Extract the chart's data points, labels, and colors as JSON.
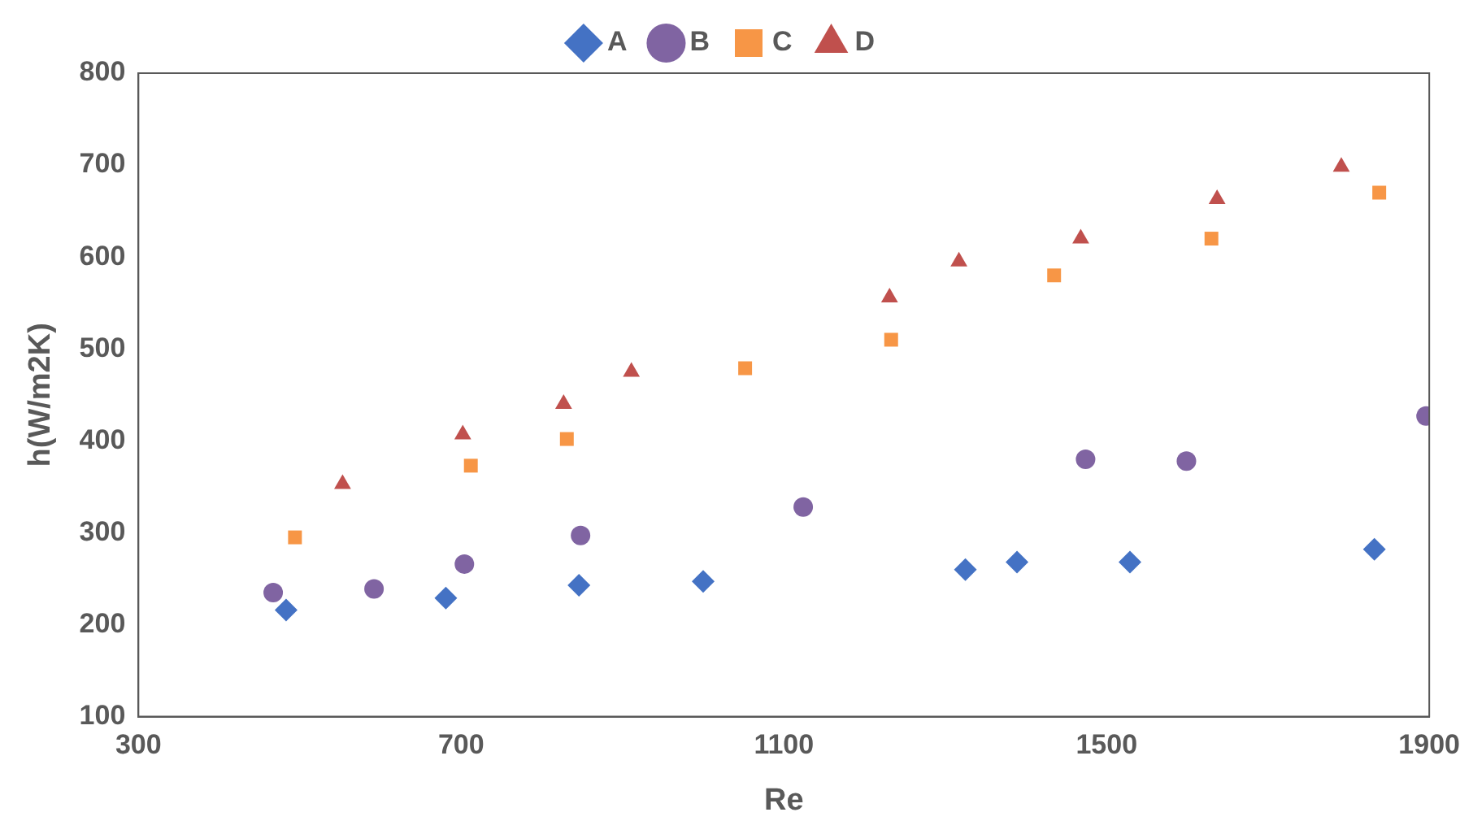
{
  "chart_data": {
    "type": "scatter",
    "xlabel": "Re",
    "ylabel": "h(W/m2K)",
    "xlim": [
      300,
      1900
    ],
    "xticks": [
      300,
      700,
      1100,
      1500,
      1900
    ],
    "ylim": [
      100,
      800
    ],
    "yticks": [
      100,
      200,
      300,
      400,
      500,
      600,
      700,
      800
    ],
    "grid": false,
    "legend": "top",
    "series": [
      {
        "name": "A",
        "color": "#4472c4",
        "marker": "diamond",
        "x": [
          483,
          681,
          846,
          1000,
          1325,
          1389,
          1529,
          1832
        ],
        "values": [
          216,
          229,
          243,
          247,
          260,
          268,
          268,
          282
        ]
      },
      {
        "name": "B",
        "color": "#8064a2",
        "marker": "circle",
        "x": [
          467,
          592,
          704,
          848,
          1124,
          1474,
          1599,
          1896
        ],
        "values": [
          235,
          239,
          266,
          297,
          328,
          380,
          378,
          427
        ]
      },
      {
        "name": "C",
        "color": "#f79646",
        "marker": "square",
        "x": [
          494,
          712,
          831,
          1052,
          1233,
          1435,
          1630,
          1838
        ],
        "values": [
          295,
          373,
          402,
          479,
          510,
          580,
          620,
          670
        ]
      },
      {
        "name": "D",
        "color": "#c0504d",
        "marker": "triangle",
        "x": [
          553,
          702,
          827,
          911,
          1231,
          1317,
          1468,
          1637,
          1791
        ],
        "values": [
          353,
          407,
          440,
          475,
          556,
          595,
          620,
          663,
          698
        ]
      }
    ]
  }
}
